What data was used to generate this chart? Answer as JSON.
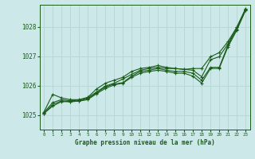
{
  "xlabel": "Graphe pression niveau de la mer (hPa)",
  "ylim": [
    1024.5,
    1028.75
  ],
  "xlim": [
    -0.5,
    23.5
  ],
  "yticks": [
    1025,
    1026,
    1027,
    1028
  ],
  "xticks": [
    0,
    1,
    2,
    3,
    4,
    5,
    6,
    7,
    8,
    9,
    10,
    11,
    12,
    13,
    14,
    15,
    16,
    17,
    18,
    19,
    20,
    21,
    22,
    23
  ],
  "background_color": "#cce8e8",
  "grid_color": "#b8d8d8",
  "line_color": "#1a5c1a",
  "series": [
    [
      1025.1,
      1025.7,
      1025.58,
      1025.52,
      1025.52,
      1025.6,
      1025.88,
      1026.08,
      1026.18,
      1026.28,
      1026.48,
      1026.58,
      1026.62,
      1026.68,
      1026.62,
      1026.58,
      1026.55,
      1026.52,
      1026.3,
      1026.88,
      1026.98,
      1027.42,
      1027.98,
      1028.58
    ],
    [
      1025.08,
      1025.42,
      1025.52,
      1025.48,
      1025.5,
      1025.58,
      1025.78,
      1025.98,
      1026.08,
      1026.22,
      1026.38,
      1026.52,
      1026.58,
      1026.62,
      1026.58,
      1026.58,
      1026.55,
      1026.58,
      1026.58,
      1026.98,
      1027.12,
      1027.5,
      1027.98,
      1028.62
    ],
    [
      1025.05,
      1025.35,
      1025.48,
      1025.45,
      1025.47,
      1025.55,
      1025.75,
      1025.95,
      1026.05,
      1026.1,
      1026.32,
      1026.48,
      1026.52,
      1026.58,
      1026.52,
      1026.48,
      1026.48,
      1026.42,
      1026.18,
      1026.62,
      1026.62,
      1027.38,
      1027.92,
      1028.6
    ],
    [
      1025.05,
      1025.3,
      1025.45,
      1025.45,
      1025.47,
      1025.52,
      1025.72,
      1025.9,
      1026.02,
      1026.08,
      1026.28,
      1026.42,
      1026.48,
      1026.52,
      1026.48,
      1026.42,
      1026.42,
      1026.32,
      1026.08,
      1026.58,
      1026.58,
      1027.32,
      1027.88,
      1028.55
    ]
  ]
}
